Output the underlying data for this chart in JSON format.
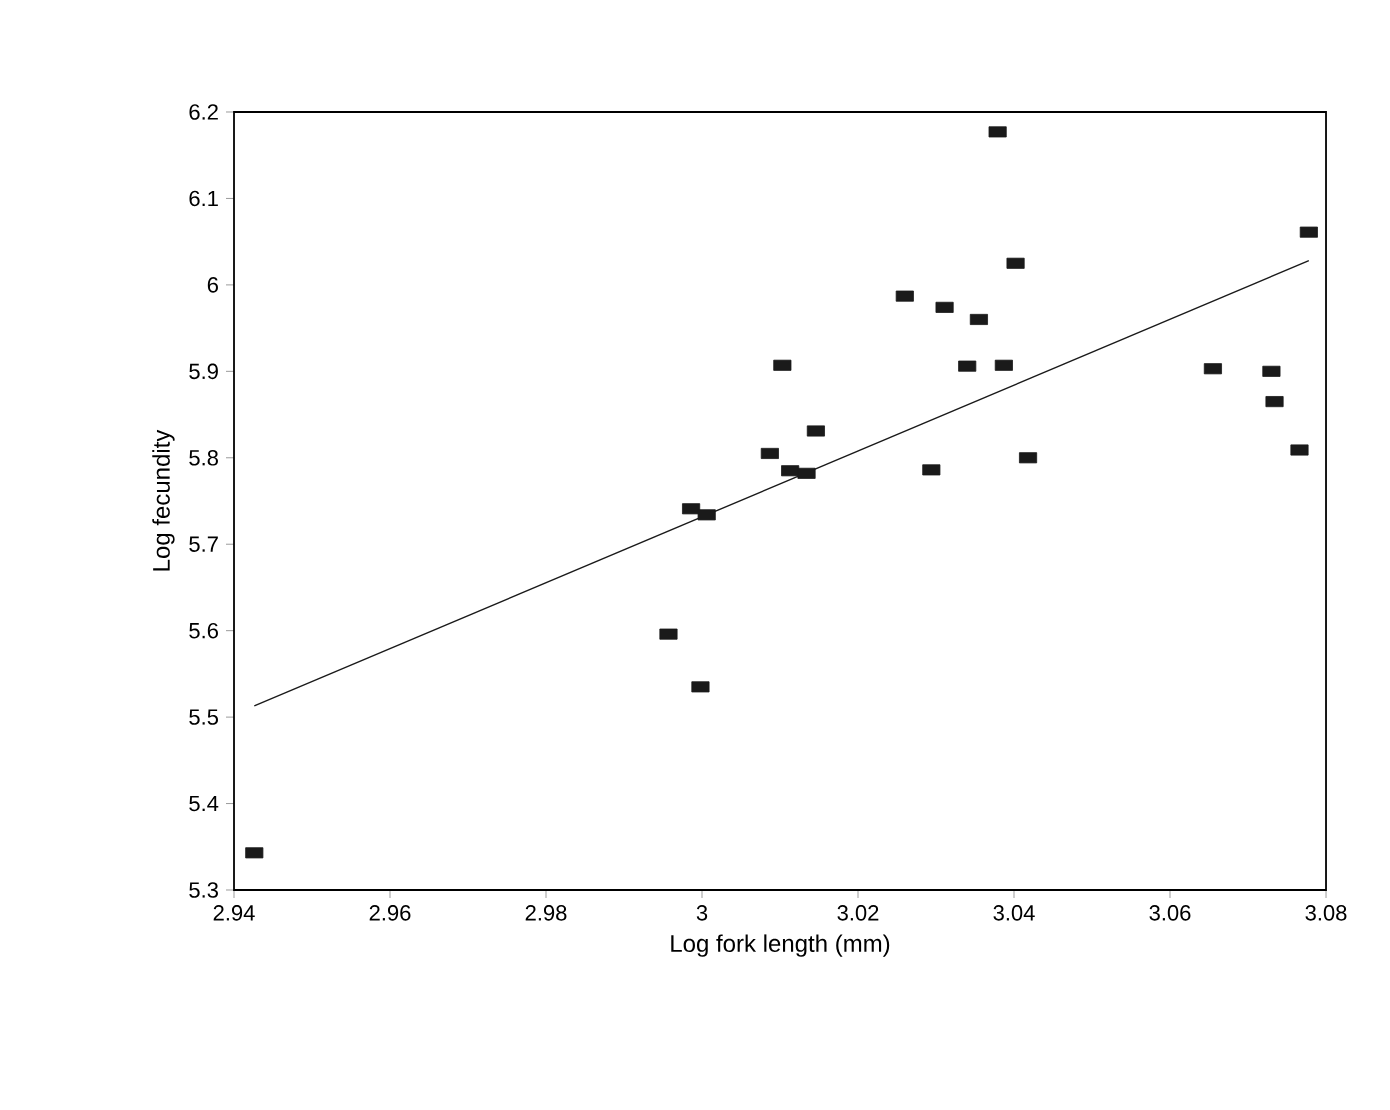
{
  "chart_data": {
    "type": "scatter",
    "xlabel": "Log fork length (mm)",
    "ylabel": "Log fecundity",
    "xlim": [
      2.94,
      3.08
    ],
    "ylim": [
      5.3,
      6.2
    ],
    "xticks": [
      2.94,
      2.96,
      2.98,
      {
        "value": 3,
        "label": "3"
      },
      3.02,
      3.04,
      3.06,
      3.08
    ],
    "yticks": [
      5.3,
      5.4,
      5.5,
      5.6,
      5.7,
      5.8,
      5.9,
      {
        "value": 6,
        "label": "6"
      },
      6.1,
      6.2
    ],
    "grid": false,
    "marker": "square",
    "series": [
      {
        "color": "#1a1a1a",
        "x": [
          2.9426,
          2.9957,
          2.9998,
          2.9986,
          3.0006,
          3.0087,
          3.0103,
          3.0113,
          3.0134,
          3.0146,
          3.026,
          3.0294,
          3.0311,
          3.034,
          3.0355,
          3.0379,
          3.0387,
          3.0402,
          3.0418,
          3.0655,
          3.073,
          3.0734,
          3.0766,
          3.0778
        ],
        "values": [
          5.343,
          5.596,
          5.535,
          5.741,
          5.734,
          5.805,
          5.907,
          5.785,
          5.782,
          5.831,
          5.987,
          5.786,
          5.974,
          5.906,
          5.96,
          6.177,
          5.907,
          6.025,
          5.8,
          5.903,
          5.9,
          5.865,
          5.809,
          6.061
        ]
      },
      {
        "type": "line",
        "color": "#1a1a1a",
        "marker": "none",
        "line_style": "solid",
        "x": [
          2.9426,
          3.0778
        ],
        "values": [
          5.513,
          6.028
        ]
      }
    ]
  }
}
